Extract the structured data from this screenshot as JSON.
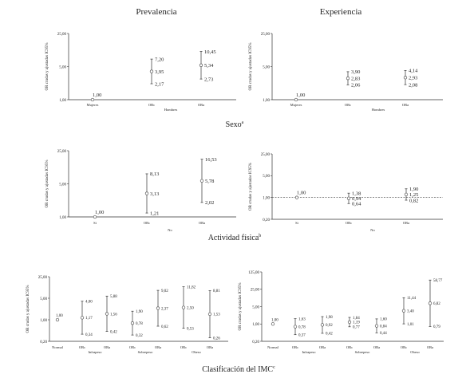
{
  "column_titles": [
    "Prevalencia",
    "Experiencia"
  ],
  "section_titles": [
    "Sexo",
    "Actividad física",
    "Clasificación del IMC"
  ],
  "section_superscripts": [
    "a",
    "b",
    "c"
  ],
  "chart_data": [
    {
      "id": "sexo-prevalencia",
      "type": "scatter",
      "error_bars": true,
      "log_y": true,
      "ylabel": "OR crudas y ajustadas IC95%",
      "yticks": [
        "25,00",
        "5,00",
        "1,00"
      ],
      "ylim": [
        1,
        25
      ],
      "categories": [
        "Mujeres",
        "ORc",
        "ORa"
      ],
      "groups": [
        "Hombres"
      ],
      "points": [
        {
          "x": "Mujeres",
          "y": 1.0,
          "y_label": "1,00"
        },
        {
          "x": "ORc",
          "y": 3.95,
          "low": 2.17,
          "high": 7.2,
          "y_label": "3,95",
          "low_label": "2,17",
          "high_label": "7,20"
        },
        {
          "x": "ORa",
          "y": 5.34,
          "low": 2.73,
          "high": 10.45,
          "y_label": "5,34",
          "low_label": "2,73",
          "high_label": "10,45"
        }
      ]
    },
    {
      "id": "sexo-experiencia",
      "type": "scatter",
      "error_bars": true,
      "log_y": true,
      "ylabel": "OR crudas y ajustadas IC95%",
      "yticks": [
        "25,00",
        "5,00",
        "1,00"
      ],
      "ylim": [
        1,
        25
      ],
      "categories": [
        "Mujeres",
        "ORc",
        "ORa"
      ],
      "groups": [
        "Hombres"
      ],
      "points": [
        {
          "x": "Mujeres",
          "y": 1.0,
          "y_label": "1,00"
        },
        {
          "x": "ORc",
          "y": 2.83,
          "low": 2.06,
          "high": 3.9,
          "y_label": "2,83",
          "low_label": "2,06",
          "high_label": "3,90"
        },
        {
          "x": "ORa",
          "y": 2.93,
          "low": 2.08,
          "high": 4.14,
          "y_label": "2,93",
          "low_label": "2,08",
          "high_label": "4,14"
        }
      ]
    },
    {
      "id": "actividad-prevalencia",
      "type": "scatter",
      "error_bars": true,
      "log_y": true,
      "ylabel": "OR crudas y ajustadas IC95%",
      "yticks": [
        "25,00",
        "5,00",
        "1,00"
      ],
      "ylim": [
        1,
        25
      ],
      "categories": [
        "Si",
        "ORc",
        "ORa"
      ],
      "groups": [
        "No"
      ],
      "points": [
        {
          "x": "Si",
          "y": 1.0,
          "y_label": "1,00"
        },
        {
          "x": "ORc",
          "y": 3.13,
          "low": 1.21,
          "high": 8.13,
          "y_label": "3,13",
          "low_label": "1,21",
          "high_label": "8,13"
        },
        {
          "x": "ORa",
          "y": 5.78,
          "low": 2.02,
          "high": 16.53,
          "y_label": "5,78",
          "low_label": "2,02",
          "high_label": "16,53"
        }
      ]
    },
    {
      "id": "actividad-experiencia",
      "type": "scatter",
      "error_bars": true,
      "log_y": true,
      "reference_line": 1,
      "ylabel": "OR crudas y ajustadas IC95%",
      "yticks": [
        "25,00",
        "5,00",
        "1,00",
        "0,20"
      ],
      "ylim": [
        0.2,
        25
      ],
      "categories": [
        "Si",
        "ORc",
        "ORa"
      ],
      "groups": [
        "No"
      ],
      "points": [
        {
          "x": "Si",
          "y": 1.0,
          "y_label": "1,00"
        },
        {
          "x": "ORc",
          "y": 0.94,
          "low": 0.64,
          "high": 1.38,
          "y_label": "0,94",
          "low_label": "0,64",
          "high_label": "1,38"
        },
        {
          "x": "ORa",
          "y": 1.25,
          "low": 0.82,
          "high": 1.9,
          "y_label": "1,25",
          "low_label": "0,82",
          "high_label": "1,90"
        }
      ]
    },
    {
      "id": "imc-prevalencia",
      "type": "scatter",
      "error_bars": true,
      "log_y": true,
      "ylabel": "OR crudas y ajustadas IC95%",
      "yticks": [
        "25,00",
        "5,00",
        "1,00",
        "0,20"
      ],
      "ylim": [
        0.2,
        25
      ],
      "categories": [
        "Normal",
        "ORc",
        "ORa",
        "ORc",
        "ORa",
        "ORc",
        "ORa"
      ],
      "groups": [
        "Infrapeso",
        "Sobrepeso",
        "Obeso"
      ],
      "points": [
        {
          "x": "Normal",
          "y": 1.0,
          "y_label": "1,00"
        },
        {
          "x": "ORc",
          "y": 1.17,
          "low": 0.34,
          "high": 4.0,
          "y_label": "1,17",
          "low_label": "0,34",
          "high_label": "4,00"
        },
        {
          "x": "ORa",
          "y": 1.56,
          "low": 0.42,
          "high": 5.88,
          "y_label": "1,56",
          "low_label": "0,42",
          "high_label": "5,88"
        },
        {
          "x": "ORc",
          "y": 0.78,
          "low": 0.32,
          "high": 1.9,
          "y_label": "0,78",
          "low_label": "0,32",
          "high_label": "1,90"
        },
        {
          "x": "ORa",
          "y": 2.37,
          "low": 0.62,
          "high": 9.02,
          "y_label": "2,37",
          "low_label": "0,62",
          "high_label": "9,02"
        },
        {
          "x": "ORc",
          "y": 2.5,
          "low": 0.53,
          "high": 11.82,
          "y_label": "2,50",
          "low_label": "0,53",
          "high_label": "11,82"
        },
        {
          "x": "ORa",
          "y": 1.53,
          "low": 0.26,
          "high": 8.81,
          "y_label": "1,53",
          "low_label": "0,26",
          "high_label": "8,81"
        }
      ]
    },
    {
      "id": "imc-experiencia",
      "type": "scatter",
      "error_bars": true,
      "log_y": true,
      "ylabel": "OR crudas y ajustadas IC95%",
      "yticks": [
        "125,00",
        "25,00",
        "5,00",
        "1,00",
        "0,20"
      ],
      "ylim": [
        0.2,
        125
      ],
      "categories": [
        "Normal",
        "ORc",
        "ORa",
        "ORc",
        "ORa",
        "ORc",
        "ORa"
      ],
      "groups": [
        "Infrapeso",
        "Sobrepeso",
        "Obeso"
      ],
      "points": [
        {
          "x": "Normal",
          "y": 1.0,
          "y_label": "1,00"
        },
        {
          "x": "ORc",
          "y": 0.78,
          "low": 0.37,
          "high": 1.63,
          "y_label": "0,78",
          "low_label": "0,37",
          "high_label": "1,63"
        },
        {
          "x": "ORa",
          "y": 0.92,
          "low": 0.42,
          "high": 1.98,
          "y_label": "0,92",
          "low_label": "0,42",
          "high_label": "1,98"
        },
        {
          "x": "ORc",
          "y": 1.19,
          "low": 0.77,
          "high": 1.84,
          "y_label": "1,19",
          "low_label": "0,77",
          "high_label": "1,84"
        },
        {
          "x": "ORa",
          "y": 0.84,
          "low": 0.44,
          "high": 1.6,
          "y_label": "0,84",
          "low_label": "0,44",
          "high_label": "1,60"
        },
        {
          "x": "ORc",
          "y": 3.4,
          "low": 1.01,
          "high": 11.44,
          "y_label": "3,40",
          "low_label": "1,01",
          "high_label": "11,44"
        },
        {
          "x": "ORa",
          "y": 6.82,
          "low": 0.79,
          "high": 58.77,
          "y_label": "6,82",
          "low_label": "0,79",
          "high_label": "58,77"
        }
      ]
    }
  ]
}
